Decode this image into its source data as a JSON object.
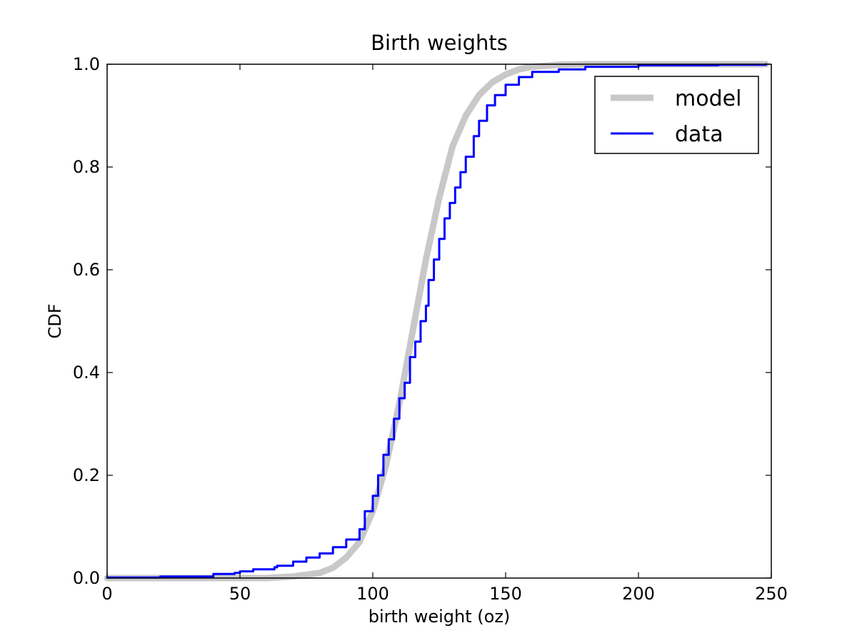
{
  "chart_data": {
    "type": "line",
    "title": "Birth weights",
    "xlabel": "birth weight (oz)",
    "ylabel": "CDF",
    "xlim": [
      0,
      250
    ],
    "ylim": [
      0.0,
      1.0
    ],
    "x_ticks": [
      "0",
      "50",
      "100",
      "150",
      "200",
      "250"
    ],
    "y_ticks": [
      "0.0",
      "0.2",
      "0.4",
      "0.6",
      "0.8",
      "1.0"
    ],
    "grid": false,
    "legend_position": "top-right",
    "series": [
      {
        "name": "model",
        "color": "#c8c8c8",
        "points": [
          [
            0,
            0.0
          ],
          [
            60,
            0.0
          ],
          [
            70,
            0.003
          ],
          [
            80,
            0.01
          ],
          [
            85,
            0.02
          ],
          [
            90,
            0.04
          ],
          [
            95,
            0.07
          ],
          [
            100,
            0.13
          ],
          [
            105,
            0.22
          ],
          [
            110,
            0.34
          ],
          [
            115,
            0.48
          ],
          [
            120,
            0.62
          ],
          [
            125,
            0.74
          ],
          [
            130,
            0.84
          ],
          [
            135,
            0.9
          ],
          [
            140,
            0.94
          ],
          [
            145,
            0.965
          ],
          [
            150,
            0.98
          ],
          [
            155,
            0.99
          ],
          [
            160,
            0.995
          ],
          [
            170,
            0.999
          ],
          [
            180,
            1.0
          ],
          [
            248,
            1.0
          ]
        ]
      },
      {
        "name": "data",
        "color": "#0000ff",
        "points": [
          [
            0,
            0.001
          ],
          [
            20,
            0.003
          ],
          [
            40,
            0.008
          ],
          [
            48,
            0.01
          ],
          [
            50,
            0.013
          ],
          [
            55,
            0.017
          ],
          [
            63,
            0.021
          ],
          [
            64,
            0.024
          ],
          [
            70,
            0.032
          ],
          [
            75,
            0.04
          ],
          [
            80,
            0.048
          ],
          [
            85,
            0.06
          ],
          [
            90,
            0.075
          ],
          [
            95,
            0.095
          ],
          [
            97,
            0.13
          ],
          [
            100,
            0.16
          ],
          [
            102,
            0.2
          ],
          [
            104,
            0.24
          ],
          [
            106,
            0.27
          ],
          [
            108,
            0.31
          ],
          [
            110,
            0.35
          ],
          [
            112,
            0.38
          ],
          [
            114,
            0.43
          ],
          [
            116,
            0.46
          ],
          [
            118,
            0.5
          ],
          [
            120,
            0.53
          ],
          [
            121,
            0.58
          ],
          [
            123,
            0.62
          ],
          [
            125,
            0.66
          ],
          [
            127,
            0.7
          ],
          [
            129,
            0.73
          ],
          [
            131,
            0.76
          ],
          [
            133,
            0.79
          ],
          [
            135,
            0.82
          ],
          [
            138,
            0.86
          ],
          [
            140,
            0.89
          ],
          [
            143,
            0.92
          ],
          [
            146,
            0.94
          ],
          [
            150,
            0.96
          ],
          [
            155,
            0.975
          ],
          [
            160,
            0.985
          ],
          [
            170,
            0.99
          ],
          [
            180,
            0.995
          ],
          [
            200,
            0.998
          ],
          [
            230,
            0.999
          ],
          [
            248,
            1.0
          ]
        ]
      }
    ]
  }
}
